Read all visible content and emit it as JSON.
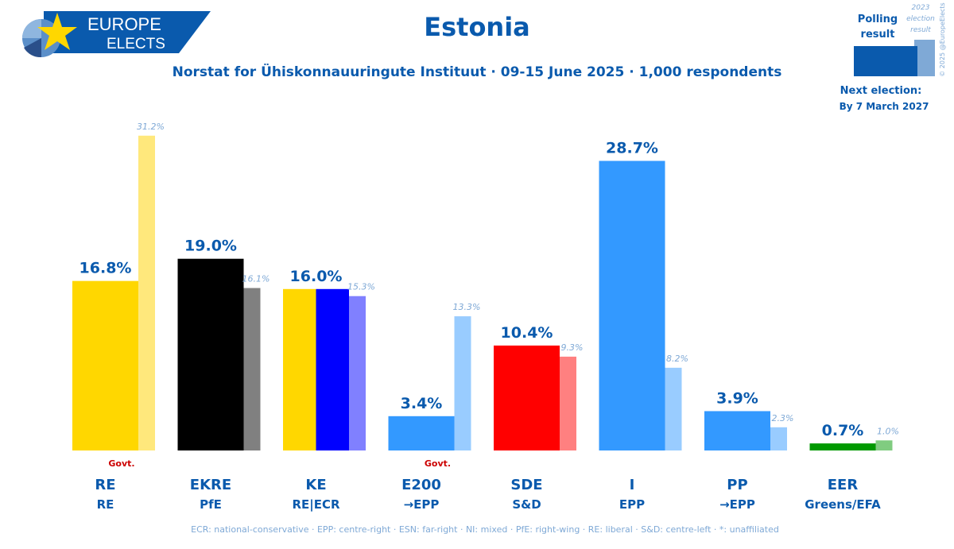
{
  "logo": {
    "line1": "EUROPE",
    "line2": "ELECTS"
  },
  "header": {
    "title": "Estonia",
    "subtitle": "Norstat for Ühiskonnauuringute Instituut · 09-15 June 2025 · 1,000 respondents"
  },
  "legend_box": {
    "polling_line1": "Polling",
    "polling_line2": "result",
    "election_line1": "2023",
    "election_line2": "election",
    "election_line3": "result",
    "copyright": "© 2025 @EuropeElects",
    "next_label": "Next election:",
    "next_date": "By 7 March 2027"
  },
  "footer": {
    "note": "ECR: national-conservative · EPP: centre-right · ESN: far-right · NI: mixed · PfE: right-wing · RE: liberal · S&D: centre-left · *: unaffiliated"
  },
  "chart_data": {
    "type": "bar",
    "title": "Estonia",
    "ylim": [
      0,
      32
    ],
    "series": [
      {
        "name": "Polling result",
        "values": [
          16.8,
          19.0,
          16.0,
          3.4,
          10.4,
          28.7,
          3.9,
          0.7
        ]
      },
      {
        "name": "2023 election result",
        "values": [
          31.2,
          16.1,
          15.3,
          13.3,
          9.3,
          8.2,
          2.3,
          1.0
        ]
      }
    ],
    "categories": [
      "RE",
      "EKRE",
      "KE",
      "E200",
      "SDE",
      "I",
      "PP",
      "EER"
    ],
    "groups": [
      "RE",
      "PfE",
      "RE|ECR",
      "→EPP",
      "S&D",
      "EPP",
      "→EPP",
      "Greens/EFA"
    ],
    "poll_labels": [
      "16.8%",
      "19.0%",
      "16.0%",
      "3.4%",
      "10.4%",
      "28.7%",
      "3.9%",
      "0.7%"
    ],
    "election_labels": [
      "31.2%",
      "16.1%",
      "15.3%",
      "13.3%",
      "9.3%",
      "8.2%",
      "2.3%",
      "1.0%"
    ],
    "govt_label": "Govt.",
    "govt_parties": [
      0,
      3
    ],
    "poll_colors": [
      [
        "#FFD700"
      ],
      [
        "#000000"
      ],
      [
        "#FFD700",
        "#0000FF"
      ],
      [
        "#3399FF"
      ],
      [
        "#FF0000"
      ],
      [
        "#3399FF"
      ],
      [
        "#3399FF"
      ],
      [
        "#009900"
      ]
    ],
    "election_colors": [
      "#FFE87C",
      "#808080",
      "#8080FF",
      "#99CCFF",
      "#FF8080",
      "#99CCFF",
      "#99CCFF",
      "#80CC80"
    ]
  }
}
